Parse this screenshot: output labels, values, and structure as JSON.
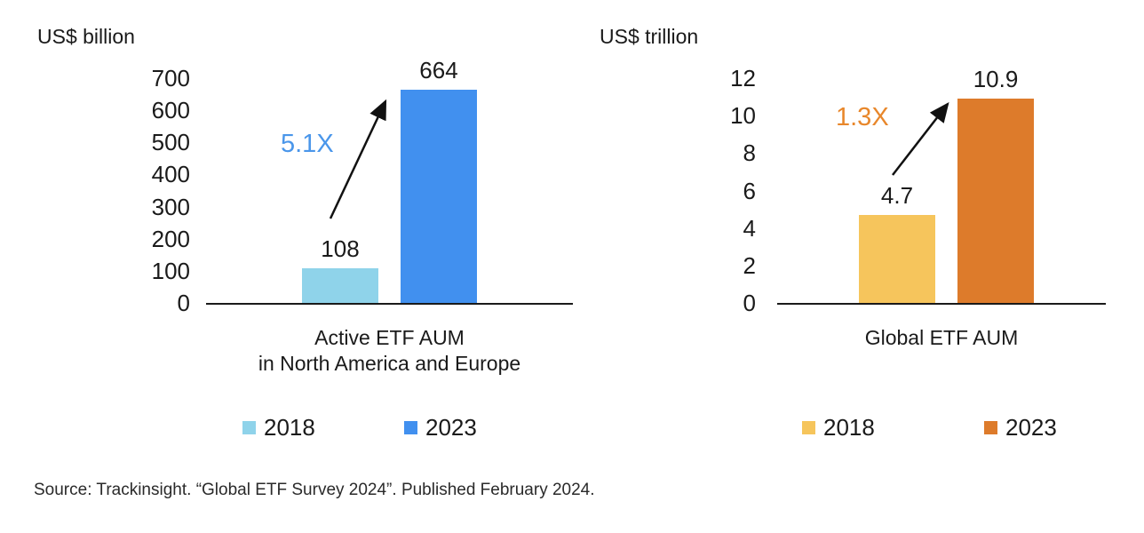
{
  "chart_data": [
    {
      "type": "bar",
      "unit": "US$ billion",
      "title": "Active ETF AUM in North America and Europe",
      "xlabel_line1": "Active ETF AUM",
      "xlabel_line2": "in North America and Europe",
      "categories": [
        "2018",
        "2023"
      ],
      "values": [
        108,
        664
      ],
      "value_labels": [
        "108",
        "664"
      ],
      "bar_colors": [
        "#8fd3ea",
        "#4190ef"
      ],
      "ylim": [
        0,
        700
      ],
      "yticks": [
        700,
        600,
        500,
        400,
        300,
        200,
        100,
        0
      ],
      "growth_label": "5.1X",
      "growth_color": "#4a96ea",
      "legend": [
        "2018",
        "2023"
      ],
      "legend_position": "bottom",
      "grid": false
    },
    {
      "type": "bar",
      "unit": "US$ trillion",
      "title": "Global ETF AUM",
      "xlabel_line1": "Global ETF AUM",
      "xlabel_line2": "",
      "categories": [
        "2018",
        "2023"
      ],
      "values": [
        4.7,
        10.9
      ],
      "value_labels": [
        "4.7",
        "10.9"
      ],
      "bar_colors": [
        "#f6c55c",
        "#dd7b2b"
      ],
      "ylim": [
        0,
        12
      ],
      "yticks": [
        12,
        10,
        8,
        6,
        4,
        2,
        0
      ],
      "growth_label": "1.3X",
      "growth_color": "#e8872b",
      "legend": [
        "2018",
        "2023"
      ],
      "legend_position": "bottom",
      "grid": false
    }
  ],
  "source": "Source: Trackinsight. “Global ETF Survey 2024”. Published February 2024."
}
